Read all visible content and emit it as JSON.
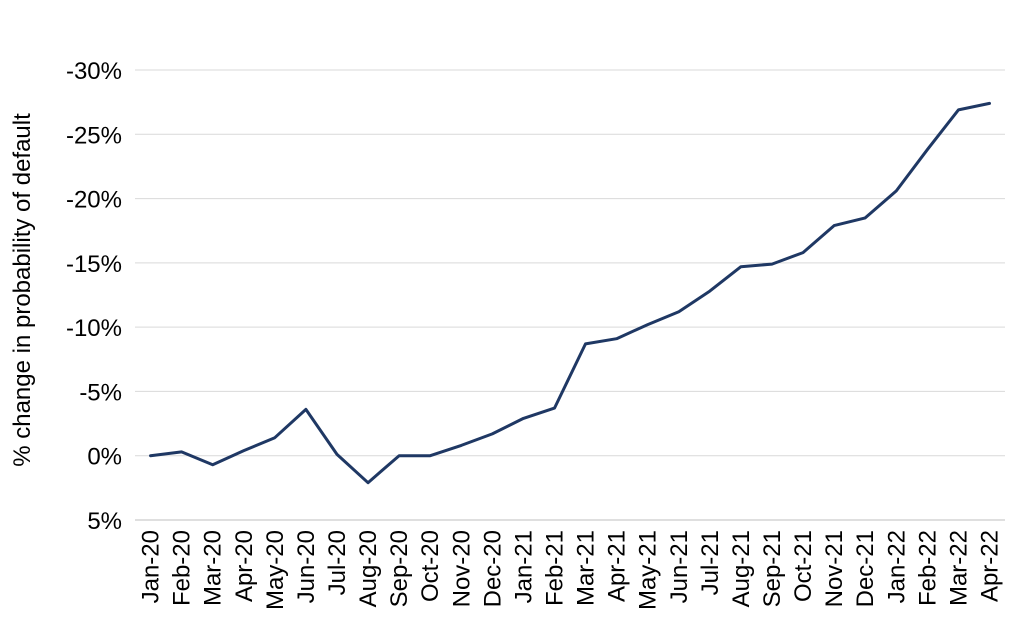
{
  "chart_data": {
    "type": "line",
    "ylabel": "% change in probability of default",
    "y_ticks": [
      {
        "value": -30,
        "label": "-30%"
      },
      {
        "value": -25,
        "label": "-25%"
      },
      {
        "value": -20,
        "label": "-20%"
      },
      {
        "value": -15,
        "label": "-15%"
      },
      {
        "value": -10,
        "label": "-10%"
      },
      {
        "value": -5,
        "label": "-5%"
      },
      {
        "value": 0,
        "label": "0%"
      },
      {
        "value": 5,
        "label": "5%"
      }
    ],
    "ylim": [
      -30,
      5
    ],
    "y_inverted": true,
    "grid": true,
    "categories": [
      "Jan-20",
      "Feb-20",
      "Mar-20",
      "Apr-20",
      "May-20",
      "Jun-20",
      "Jul-20",
      "Aug-20",
      "Sep-20",
      "Oct-20",
      "Nov-20",
      "Dec-20",
      "Jan-21",
      "Feb-21",
      "Mar-21",
      "Apr-21",
      "May-21",
      "Jun-21",
      "Jul-21",
      "Aug-21",
      "Sep-21",
      "Oct-21",
      "Nov-21",
      "Dec-21",
      "Jan-22",
      "Feb-22",
      "Mar-22",
      "Apr-22"
    ],
    "series": [
      {
        "color": "#1f3864",
        "values": [
          0.0,
          -0.3,
          0.7,
          -0.4,
          -1.4,
          -3.6,
          -0.1,
          2.1,
          0.0,
          0.0,
          -0.8,
          -1.7,
          -2.9,
          -3.7,
          -8.7,
          -9.1,
          -10.2,
          -11.2,
          -12.8,
          -14.7,
          -14.9,
          -15.8,
          -17.9,
          -18.5,
          -20.6,
          -23.8,
          -26.9,
          -27.4
        ]
      }
    ]
  }
}
